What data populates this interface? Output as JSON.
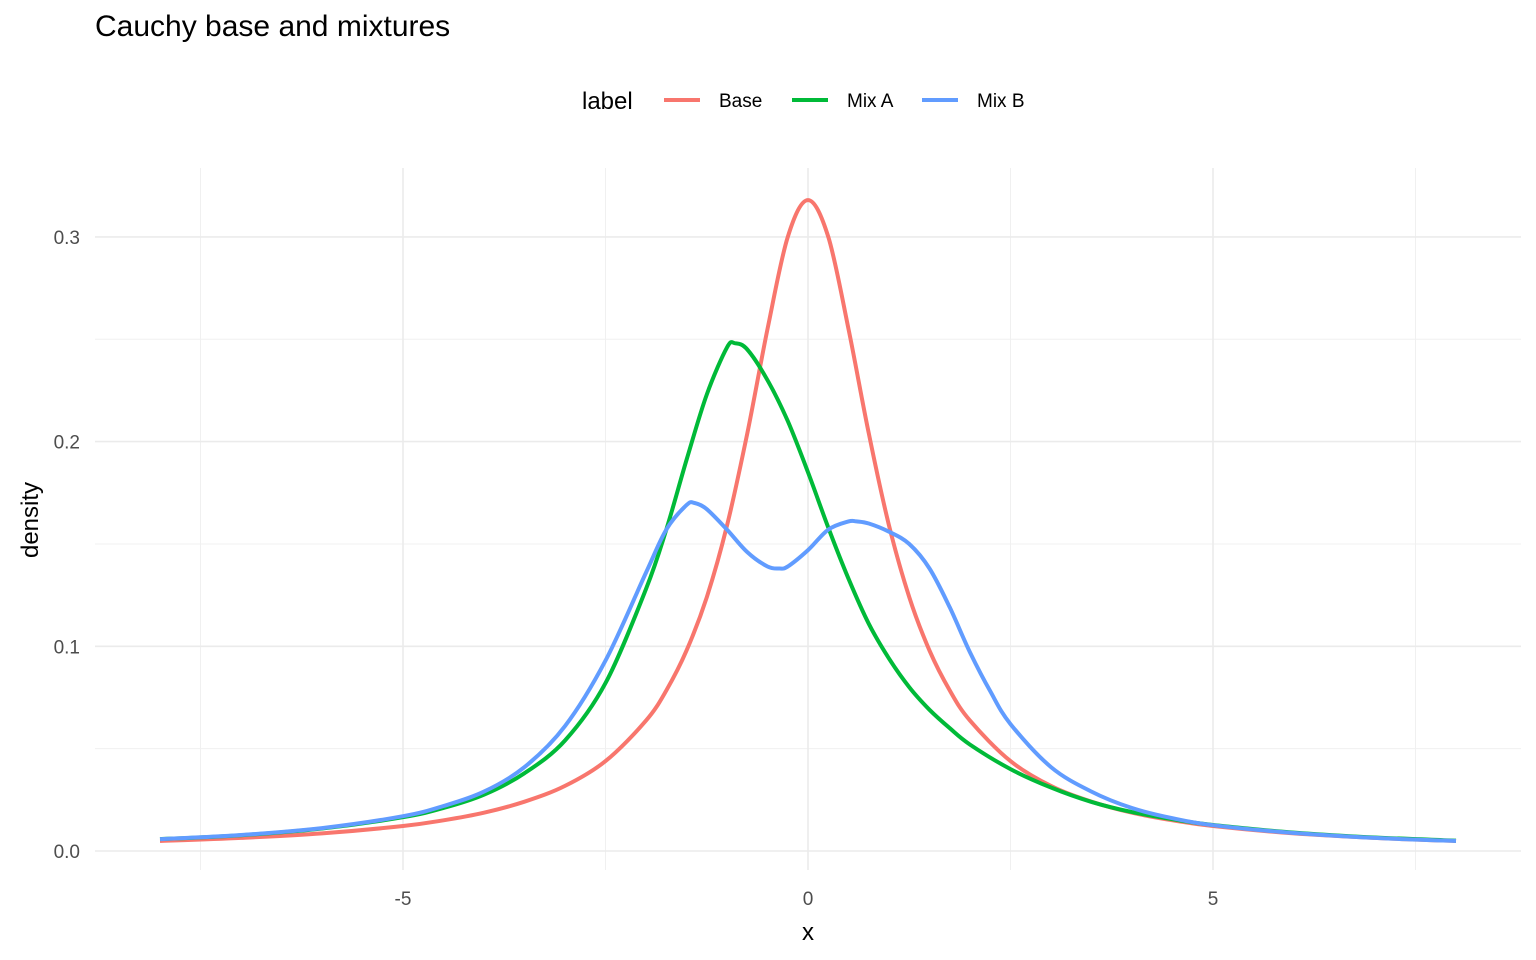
{
  "title": "Cauchy base and mixtures",
  "legend": {
    "title": "label",
    "entries": [
      {
        "name": "Base",
        "color": "#F8766D"
      },
      {
        "name": "Mix A",
        "color": "#00BA38"
      },
      {
        "name": "Mix B",
        "color": "#619CFF"
      }
    ]
  },
  "chart_data": {
    "type": "line",
    "xlabel": "x",
    "ylabel": "density",
    "xlim": [
      -8,
      8
    ],
    "ylim": [
      0,
      0.32
    ],
    "x_ticks": [
      -5,
      0,
      5
    ],
    "y_ticks": [
      0.0,
      0.1,
      0.2,
      0.3
    ],
    "x_tick_labels": [
      "-5",
      "0",
      "5"
    ],
    "y_tick_labels": [
      "0.0",
      "0.1",
      "0.2",
      "0.3"
    ],
    "grid": true,
    "legend_position": "top",
    "series": [
      {
        "name": "Base",
        "color": "#F8766D",
        "x": [
          -8,
          -7,
          -6,
          -5,
          -4.5,
          -4,
          -3.5,
          -3,
          -2.5,
          -2,
          -1.75,
          -1.5,
          -1.25,
          -1,
          -0.75,
          -0.5,
          -0.25,
          0,
          0.25,
          0.5,
          0.75,
          1,
          1.25,
          1.5,
          1.75,
          2,
          2.5,
          3,
          3.5,
          4,
          4.5,
          5,
          6,
          7,
          8
        ],
        "y": [
          0.0049,
          0.0064,
          0.0086,
          0.0122,
          0.015,
          0.0187,
          0.0241,
          0.0318,
          0.0439,
          0.0637,
          0.0784,
          0.0979,
          0.124,
          0.159,
          0.204,
          0.255,
          0.3,
          0.318,
          0.3,
          0.255,
          0.204,
          0.159,
          0.124,
          0.0979,
          0.0784,
          0.0637,
          0.0439,
          0.0318,
          0.0241,
          0.0187,
          0.015,
          0.0122,
          0.0086,
          0.0064,
          0.0049
        ]
      },
      {
        "name": "Mix A",
        "color": "#00BA38",
        "x": [
          -8,
          -7,
          -6,
          -5,
          -4.5,
          -4,
          -3.5,
          -3,
          -2.5,
          -2,
          -1.75,
          -1.5,
          -1.25,
          -1,
          -0.9,
          -0.75,
          -0.5,
          -0.25,
          0,
          0.25,
          0.5,
          0.75,
          1,
          1.25,
          1.5,
          1.75,
          2,
          2.5,
          3,
          3.5,
          4,
          4.5,
          5,
          6,
          7,
          8
        ],
        "y": [
          0.0058,
          0.0077,
          0.011,
          0.0165,
          0.021,
          0.0275,
          0.038,
          0.054,
          0.082,
          0.128,
          0.157,
          0.191,
          0.223,
          0.246,
          0.248,
          0.245,
          0.23,
          0.21,
          0.185,
          0.158,
          0.133,
          0.111,
          0.094,
          0.08,
          0.069,
          0.06,
          0.052,
          0.04,
          0.031,
          0.024,
          0.019,
          0.0155,
          0.0127,
          0.009,
          0.0066,
          0.0051
        ]
      },
      {
        "name": "Mix B",
        "color": "#619CFF",
        "x": [
          -8,
          -7,
          -6,
          -5,
          -4.5,
          -4,
          -3.5,
          -3,
          -2.5,
          -2,
          -1.75,
          -1.5,
          -1.4,
          -1.25,
          -1,
          -0.75,
          -0.5,
          -0.35,
          -0.25,
          0,
          0.25,
          0.5,
          0.6,
          0.75,
          1,
          1.25,
          1.5,
          1.75,
          2,
          2.25,
          2.5,
          3,
          3.5,
          4,
          4.5,
          5,
          6,
          7,
          8
        ],
        "y": [
          0.0058,
          0.0078,
          0.0112,
          0.017,
          0.022,
          0.029,
          0.041,
          0.061,
          0.093,
          0.136,
          0.157,
          0.169,
          0.17,
          0.167,
          0.157,
          0.146,
          0.139,
          0.138,
          0.139,
          0.147,
          0.157,
          0.161,
          0.161,
          0.16,
          0.156,
          0.15,
          0.138,
          0.119,
          0.097,
          0.078,
          0.062,
          0.041,
          0.029,
          0.021,
          0.016,
          0.0126,
          0.0088,
          0.0064,
          0.0049
        ]
      }
    ]
  }
}
